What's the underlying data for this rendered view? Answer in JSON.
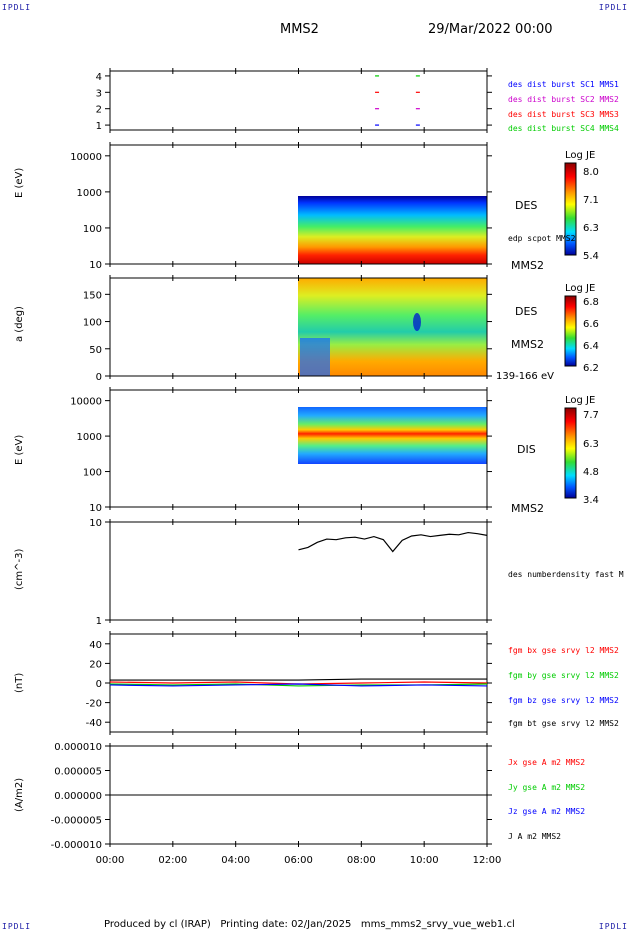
{
  "corners": {
    "tl": "IPDLI",
    "tr": "IPDLI",
    "bl": "IPDLI",
    "br": "IPDLI"
  },
  "header": {
    "spacecraft": "MMS2",
    "date": "29/Mar/2022 00:00"
  },
  "footer": {
    "text": "Produced by cl (IRAP)   Printing date: 02/Jan/2025   mms_mms2_srvy_vue_web1.cl"
  },
  "colors": {
    "red": "#ff0000",
    "green": "#00cc00",
    "blue": "#0000ff",
    "magenta": "#cc00cc",
    "black": "#000000"
  },
  "time_axis": {
    "ticks": [
      "00:00",
      "02:00",
      "04:00",
      "06:00",
      "08:00",
      "10:00",
      "12:00"
    ]
  },
  "chart_data": [
    {
      "type": "scatter",
      "panel": "burst",
      "yticks": [
        "1",
        "2",
        "3",
        "4"
      ],
      "series": [
        {
          "name": "des dist burst SC1 MMS1",
          "color": "#0000ff",
          "y": 1
        },
        {
          "name": "des dist burst SC2 MMS2",
          "color": "#cc00cc",
          "y": 2
        },
        {
          "name": "des dist burst SC3 MMS3",
          "color": "#ff0000",
          "y": 3
        },
        {
          "name": "des dist burst SC4 MMS4",
          "color": "#00cc00",
          "y": 4
        }
      ],
      "x_hours": [
        8.5,
        9.8
      ]
    },
    {
      "type": "heatmap",
      "panel": "des-energy",
      "ylabel": "E (eV)",
      "yticks": [
        "10",
        "100",
        "1000",
        "10000"
      ],
      "label": "DES",
      "sublabel": "MMS2",
      "line_label": "edp scpot MMS2",
      "colorbar": {
        "title": "Log JE",
        "ticks": [
          "8.0",
          "7.1",
          "6.3",
          "5.4"
        ]
      },
      "x_range_hours": [
        6,
        12
      ]
    },
    {
      "type": "heatmap",
      "panel": "des-pitch",
      "ylabel": "a (deg)",
      "yticks": [
        "0",
        "50",
        "100",
        "150"
      ],
      "label": "DES",
      "sublabel": "MMS2",
      "energy_label": "139-166 eV",
      "colorbar": {
        "title": "Log JE",
        "ticks": [
          "6.8",
          "6.6",
          "6.4",
          "6.2"
        ]
      },
      "x_range_hours": [
        6,
        12
      ]
    },
    {
      "type": "heatmap",
      "panel": "dis-energy",
      "ylabel": "E (eV)",
      "yticks": [
        "10",
        "100",
        "1000",
        "10000"
      ],
      "label": "DIS",
      "sublabel": "MMS2",
      "colorbar": {
        "title": "Log JE",
        "ticks": [
          "7.7",
          "6.3",
          "4.8",
          "3.4"
        ]
      },
      "x_range_hours": [
        6,
        12
      ]
    },
    {
      "type": "line",
      "panel": "density",
      "ylabel": "(cm^-3)",
      "yticks": [
        "1",
        "10"
      ],
      "ylog": true,
      "ylim": [
        1,
        10
      ],
      "series": [
        {
          "name": "des numberdensity fast M",
          "color": "#000000",
          "x": [
            6.0,
            6.3,
            6.6,
            6.9,
            7.2,
            7.5,
            7.8,
            8.1,
            8.4,
            8.7,
            9.0,
            9.3,
            9.6,
            9.9,
            10.2,
            10.5,
            10.8,
            11.1,
            11.4,
            11.7,
            12.0
          ],
          "y": [
            5.2,
            5.5,
            6.2,
            6.7,
            6.6,
            6.9,
            7.0,
            6.7,
            7.1,
            6.6,
            5.0,
            6.5,
            7.2,
            7.4,
            7.1,
            7.3,
            7.5,
            7.4,
            7.8,
            7.6,
            7.3
          ]
        }
      ]
    },
    {
      "type": "line",
      "panel": "b-field",
      "ylabel": "(nT)",
      "yticks": [
        "-40",
        "-20",
        "0",
        "20",
        "40"
      ],
      "ylim": [
        -50,
        50
      ],
      "series": [
        {
          "name": "fgm bx gse srvy l2 MMS2",
          "color": "#ff0000",
          "x": [
            0,
            2,
            4,
            6,
            8,
            10,
            12
          ],
          "y": [
            1,
            0,
            1,
            -1,
            0,
            1,
            0
          ]
        },
        {
          "name": "fgm by gse srvy l2 MMS2",
          "color": "#00cc00",
          "x": [
            0,
            2,
            4,
            6,
            8,
            10,
            12
          ],
          "y": [
            -1,
            -2,
            -1,
            -3,
            -2,
            -2,
            -1
          ]
        },
        {
          "name": "fgm bz gse srvy l2 MMS2",
          "color": "#0000ff",
          "x": [
            0,
            2,
            4,
            6,
            8,
            10,
            12
          ],
          "y": [
            -2,
            -3,
            -2,
            -1,
            -3,
            -2,
            -3
          ]
        },
        {
          "name": "fgm bt gse srvy l2 MMS2",
          "color": "#000000",
          "x": [
            0,
            2,
            4,
            6,
            8,
            10,
            12
          ],
          "y": [
            3,
            3,
            3,
            3,
            4,
            4,
            4
          ]
        }
      ]
    },
    {
      "type": "line",
      "panel": "current",
      "ylabel": "(A/m2)",
      "yticks": [
        "-0.000010",
        "-0.000005",
        "0.000000",
        "0.000005",
        "0.000010"
      ],
      "ylim": [
        -1e-05,
        1e-05
      ],
      "series": [
        {
          "name": "Jx gse A m2 MMS2",
          "color": "#ff0000",
          "x": [
            0,
            12
          ],
          "y": [
            0,
            0
          ]
        },
        {
          "name": "Jy gse A m2 MMS2",
          "color": "#00cc00",
          "x": [
            0,
            12
          ],
          "y": [
            0,
            0
          ]
        },
        {
          "name": "Jz gse A m2 MMS2",
          "color": "#0000ff",
          "x": [
            0,
            12
          ],
          "y": [
            0,
            0
          ]
        },
        {
          "name": "J A m2 MMS2",
          "color": "#000000",
          "x": [
            0,
            12
          ],
          "y": [
            0,
            0
          ]
        }
      ]
    }
  ]
}
